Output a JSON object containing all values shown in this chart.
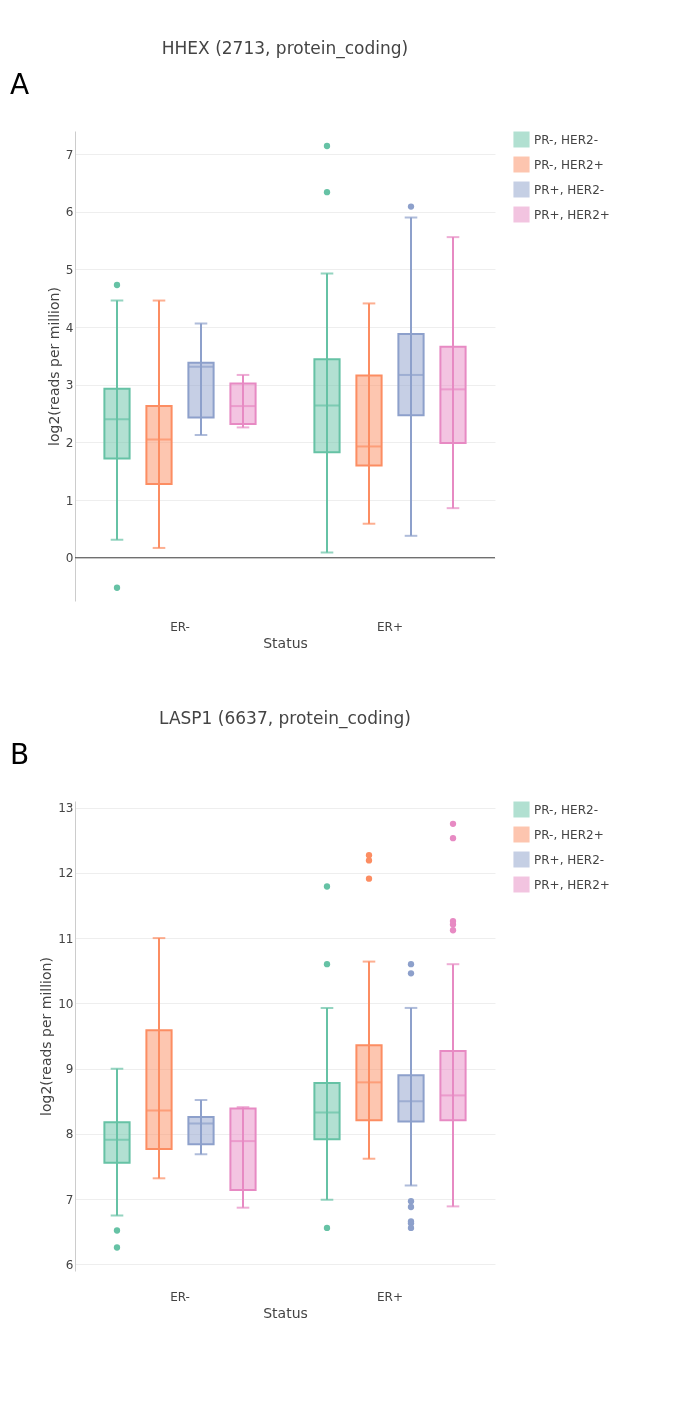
{
  "chart_data": [
    {
      "type": "box",
      "title": "HHEX (2713, protein_coding)",
      "xlabel": "Status",
      "ylabel": "log2(reads per million)",
      "annotations": [
        "A"
      ],
      "categories": [
        "ER-",
        "ER+"
      ],
      "ylim": [
        -0.75,
        7.4
      ],
      "yticks": [
        0,
        1,
        2,
        3,
        4,
        5,
        6,
        7
      ],
      "grid": "y",
      "legend": "top right",
      "ref_lines": [
        {
          "axis": "y",
          "value": 0,
          "color": "#444444"
        }
      ],
      "series": [
        {
          "name": "PR-, HER2-",
          "color": "#66c2a5",
          "boxes": [
            {
              "low": 0.31,
              "q1": 1.72,
              "median": 2.4,
              "q3": 2.93,
              "high": 4.46,
              "outliers": [
                4.73,
                -0.52
              ]
            },
            {
              "low": 0.09,
              "q1": 1.83,
              "median": 2.64,
              "q3": 3.44,
              "high": 4.93,
              "outliers": [
                7.14,
                6.34
              ]
            }
          ]
        },
        {
          "name": "PR-, HER2+",
          "color": "#fc8d62",
          "boxes": [
            {
              "low": 0.17,
              "q1": 1.28,
              "median": 2.05,
              "q3": 2.63,
              "high": 4.46
            },
            {
              "low": 0.59,
              "q1": 1.6,
              "median": 1.93,
              "q3": 3.16,
              "high": 4.41
            }
          ]
        },
        {
          "name": "PR+, HER2-",
          "color": "#8da0cb",
          "boxes": [
            {
              "low": 2.13,
              "q1": 2.43,
              "median": 3.31,
              "q3": 3.38,
              "high": 4.06
            },
            {
              "low": 0.38,
              "q1": 2.47,
              "median": 3.17,
              "q3": 3.88,
              "high": 5.9,
              "outliers": [
                6.09
              ]
            }
          ]
        },
        {
          "name": "PR+, HER2+",
          "color": "#e78ac3",
          "boxes": [
            {
              "low": 2.26,
              "q1": 2.32,
              "median": 2.63,
              "q3": 3.02,
              "high": 3.17
            },
            {
              "low": 0.86,
              "q1": 1.99,
              "median": 2.92,
              "q3": 3.66,
              "high": 5.56
            }
          ]
        }
      ]
    },
    {
      "type": "box",
      "title": "LASP1 (6637, protein_coding)",
      "xlabel": "Status",
      "ylabel": "log2(reads per million)",
      "annotations": [
        "B"
      ],
      "categories": [
        "ER-",
        "ER+"
      ],
      "ylim": [
        5.9,
        13.1
      ],
      "yticks": [
        6,
        7,
        8,
        9,
        10,
        11,
        12,
        13
      ],
      "grid": "y",
      "legend": "top right",
      "series": [
        {
          "name": "PR-, HER2-",
          "color": "#66c2a5",
          "boxes": [
            {
              "low": 6.75,
              "q1": 7.56,
              "median": 7.91,
              "q3": 8.18,
              "high": 9.0,
              "outliers": [
                6.52,
                6.26
              ]
            },
            {
              "low": 6.99,
              "q1": 7.92,
              "median": 8.33,
              "q3": 8.78,
              "high": 9.93,
              "outliers": [
                11.79,
                10.6,
                6.56
              ]
            }
          ]
        },
        {
          "name": "PR-, HER2+",
          "color": "#fc8d62",
          "boxes": [
            {
              "low": 7.32,
              "q1": 7.77,
              "median": 8.36,
              "q3": 9.59,
              "high": 11.0
            },
            {
              "low": 7.62,
              "q1": 8.21,
              "median": 8.79,
              "q3": 9.36,
              "high": 10.64,
              "outliers": [
                12.27,
                12.19,
                11.91
              ]
            }
          ]
        },
        {
          "name": "PR+, HER2-",
          "color": "#8da0cb",
          "boxes": [
            {
              "low": 7.69,
              "q1": 7.84,
              "median": 8.16,
              "q3": 8.26,
              "high": 8.52
            },
            {
              "low": 7.21,
              "q1": 8.19,
              "median": 8.5,
              "q3": 8.9,
              "high": 9.93,
              "outliers": [
                10.6,
                10.46,
                6.97,
                6.88,
                6.66,
                6.63,
                6.56
              ]
            }
          ]
        },
        {
          "name": "PR+, HER2+",
          "color": "#e78ac3",
          "boxes": [
            {
              "low": 6.87,
              "q1": 7.14,
              "median": 7.89,
              "q3": 8.39,
              "high": 8.41
            },
            {
              "low": 6.89,
              "q1": 8.21,
              "median": 8.59,
              "q3": 9.27,
              "high": 10.6,
              "outliers": [
                12.75,
                12.53,
                11.26,
                11.21,
                11.12
              ]
            }
          ]
        }
      ]
    }
  ]
}
